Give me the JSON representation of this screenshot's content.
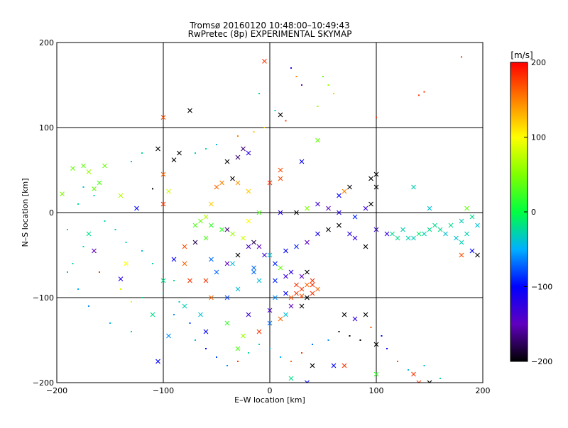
{
  "chart_data": {
    "type": "scatter",
    "title": "Tromsø 20160120 10:48:00–10:49:43",
    "subtitle": "RwPretec (8p) EXPERIMENTAL SKYMAP",
    "xlabel": "E–W location [km]",
    "ylabel": "N–S location [km]",
    "xlim": [
      -200,
      200
    ],
    "ylim": [
      -200,
      200
    ],
    "x_ticks": [
      "−200",
      "−100",
      "0",
      "100",
      "200"
    ],
    "y_ticks": [
      "−200",
      "−100",
      "0",
      "100",
      "200"
    ],
    "grid": true,
    "colorbar": {
      "label": "[m/s]",
      "range": [
        -200,
        200
      ],
      "ticks": [
        "200",
        "100",
        "0",
        "−100",
        "−200"
      ]
    },
    "series": [
      {
        "marker": "x",
        "points": [
          [
            -5,
            178,
            180
          ],
          [
            -100,
            112,
            170
          ],
          [
            -75,
            120,
            -200
          ],
          [
            10,
            115,
            -200
          ],
          [
            -105,
            75,
            -200
          ],
          [
            -85,
            70,
            -200
          ],
          [
            -90,
            62,
            -200
          ],
          [
            -30,
            65,
            -170
          ],
          [
            -20,
            70,
            -120
          ],
          [
            -25,
            75,
            -170
          ],
          [
            -40,
            60,
            -200
          ],
          [
            -100,
            45,
            160
          ],
          [
            -95,
            25,
            80
          ],
          [
            -175,
            55,
            40
          ],
          [
            -185,
            52,
            40
          ],
          [
            -170,
            48,
            60
          ],
          [
            -155,
            55,
            40
          ],
          [
            -160,
            35,
            30
          ],
          [
            -165,
            28,
            40
          ],
          [
            -195,
            22,
            50
          ],
          [
            -140,
            20,
            70
          ],
          [
            -125,
            5,
            -100
          ],
          [
            -100,
            10,
            180
          ],
          [
            -170,
            -25,
            -20
          ],
          [
            -165,
            -45,
            -150
          ],
          [
            -135,
            -60,
            100
          ],
          [
            -140,
            -78,
            -120
          ],
          [
            -110,
            -120,
            -20
          ],
          [
            -105,
            -175,
            -100
          ],
          [
            -80,
            -60,
            160
          ],
          [
            -75,
            -80,
            180
          ],
          [
            -60,
            -80,
            180
          ],
          [
            -55,
            -100,
            160
          ],
          [
            -40,
            -100,
            -80
          ],
          [
            -30,
            -90,
            -40
          ],
          [
            -20,
            -120,
            -130
          ],
          [
            -25,
            -145,
            60
          ],
          [
            -40,
            -130,
            20
          ],
          [
            -60,
            -140,
            -100
          ],
          [
            -65,
            -120,
            -40
          ],
          [
            -30,
            -160,
            30
          ],
          [
            -10,
            -140,
            180
          ],
          [
            0,
            -115,
            -140
          ],
          [
            5,
            -100,
            -60
          ],
          [
            15,
            -95,
            -100
          ],
          [
            20,
            -100,
            170
          ],
          [
            25,
            -95,
            180
          ],
          [
            30,
            -98,
            170
          ],
          [
            35,
            -100,
            -200
          ],
          [
            40,
            -95,
            180
          ],
          [
            25,
            -85,
            180
          ],
          [
            30,
            -90,
            180
          ],
          [
            35,
            -85,
            160
          ],
          [
            40,
            -85,
            180
          ],
          [
            45,
            -90,
            160
          ],
          [
            30,
            -110,
            -200
          ],
          [
            20,
            -110,
            -150
          ],
          [
            15,
            -120,
            -40
          ],
          [
            10,
            -125,
            160
          ],
          [
            0,
            -130,
            -70
          ],
          [
            40,
            -80,
            180
          ],
          [
            30,
            -75,
            -150
          ],
          [
            35,
            -70,
            -200
          ],
          [
            20,
            -70,
            -120
          ],
          [
            10,
            -65,
            40
          ],
          [
            0,
            -50,
            -40
          ],
          [
            -15,
            -65,
            -70
          ],
          [
            -30,
            -50,
            -200
          ],
          [
            -20,
            -40,
            -140
          ],
          [
            -60,
            -30,
            30
          ],
          [
            -70,
            -35,
            -180
          ],
          [
            -80,
            -40,
            170
          ],
          [
            -40,
            -20,
            -170
          ],
          [
            -20,
            -10,
            100
          ],
          [
            -10,
            0,
            30
          ],
          [
            10,
            0,
            -120
          ],
          [
            25,
            0,
            -200
          ],
          [
            35,
            5,
            50
          ],
          [
            45,
            10,
            -130
          ],
          [
            55,
            5,
            -150
          ],
          [
            65,
            0,
            -120
          ],
          [
            80,
            -5,
            -90
          ],
          [
            90,
            5,
            -130
          ],
          [
            95,
            10,
            -200
          ],
          [
            100,
            30,
            -200
          ],
          [
            100,
            45,
            -200
          ],
          [
            95,
            40,
            -200
          ],
          [
            75,
            30,
            -200
          ],
          [
            70,
            25,
            150
          ],
          [
            65,
            20,
            -100
          ],
          [
            30,
            60,
            -100
          ],
          [
            45,
            85,
            40
          ],
          [
            0,
            35,
            180
          ],
          [
            10,
            50,
            170
          ],
          [
            10,
            40,
            170
          ],
          [
            -35,
            40,
            -200
          ],
          [
            -45,
            35,
            150
          ],
          [
            -50,
            30,
            160
          ],
          [
            -30,
            35,
            140
          ],
          [
            -20,
            25,
            120
          ],
          [
            -55,
            10,
            120
          ],
          [
            -60,
            -5,
            70
          ],
          [
            -65,
            -10,
            40
          ],
          [
            -70,
            -15,
            30
          ],
          [
            -55,
            -15,
            20
          ],
          [
            -45,
            -20,
            20
          ],
          [
            -35,
            -25,
            60
          ],
          [
            -25,
            -30,
            80
          ],
          [
            -15,
            -35,
            -180
          ],
          [
            -10,
            -40,
            -150
          ],
          [
            -5,
            -50,
            -130
          ],
          [
            5,
            -60,
            -90
          ],
          [
            15,
            -45,
            -100
          ],
          [
            25,
            -40,
            -90
          ],
          [
            35,
            -35,
            -150
          ],
          [
            45,
            -25,
            -110
          ],
          [
            55,
            -20,
            -200
          ],
          [
            65,
            -15,
            -200
          ],
          [
            75,
            -25,
            -120
          ],
          [
            80,
            -30,
            -130
          ],
          [
            90,
            -40,
            -200
          ],
          [
            100,
            -20,
            -130
          ],
          [
            110,
            -25,
            -130
          ],
          [
            120,
            -30,
            -20
          ],
          [
            130,
            -30,
            -30
          ],
          [
            140,
            -25,
            -10
          ],
          [
            150,
            -20,
            -20
          ],
          [
            160,
            -20,
            -20
          ],
          [
            170,
            -15,
            -20
          ],
          [
            180,
            -10,
            -30
          ],
          [
            190,
            -5,
            -20
          ],
          [
            195,
            -15,
            -40
          ],
          [
            185,
            -25,
            -30
          ],
          [
            175,
            -30,
            -40
          ],
          [
            165,
            -25,
            -40
          ],
          [
            155,
            -15,
            -20
          ],
          [
            145,
            -25,
            -30
          ],
          [
            135,
            -30,
            -30
          ],
          [
            125,
            -20,
            -30
          ],
          [
            115,
            -25,
            -20
          ],
          [
            180,
            -35,
            -30
          ],
          [
            190,
            -45,
            -100
          ],
          [
            195,
            -50,
            -200
          ],
          [
            180,
            -50,
            170
          ],
          [
            135,
            30,
            -30
          ],
          [
            150,
            5,
            -40
          ],
          [
            185,
            5,
            40
          ],
          [
            70,
            -120,
            -200
          ],
          [
            90,
            -120,
            -200
          ],
          [
            80,
            -125,
            -130
          ],
          [
            100,
            -155,
            -200
          ],
          [
            100,
            -190,
            20
          ],
          [
            135,
            -190,
            180
          ],
          [
            140,
            -200,
            180
          ],
          [
            150,
            -200,
            -200
          ],
          [
            70,
            -180,
            180
          ],
          [
            60,
            -180,
            -100
          ],
          [
            40,
            -180,
            -200
          ],
          [
            35,
            -200,
            -100
          ],
          [
            20,
            -195,
            -20
          ],
          [
            -15,
            -70,
            -70
          ],
          [
            -50,
            -70,
            -70
          ],
          [
            -40,
            -60,
            -150
          ],
          [
            -55,
            -55,
            -70
          ],
          [
            -35,
            -60,
            -40
          ],
          [
            -10,
            -80,
            -40
          ],
          [
            5,
            -80,
            -90
          ],
          [
            15,
            -75,
            -130
          ],
          [
            -90,
            -55,
            -100
          ],
          [
            -80,
            -110,
            -30
          ],
          [
            -95,
            -145,
            -60
          ],
          [
            -100,
            -80,
            -20
          ]
        ]
      },
      {
        "marker": "dot",
        "points": [
          [
            180,
            183,
            180
          ],
          [
            140,
            138,
            180
          ],
          [
            145,
            142,
            180
          ],
          [
            100,
            112,
            180
          ],
          [
            20,
            170,
            -120
          ],
          [
            25,
            160,
            150
          ],
          [
            -10,
            140,
            -20
          ],
          [
            30,
            150,
            -150
          ],
          [
            50,
            160,
            40
          ],
          [
            55,
            150,
            60
          ],
          [
            60,
            140,
            120
          ],
          [
            45,
            125,
            60
          ],
          [
            5,
            120,
            -30
          ],
          [
            15,
            108,
            180
          ],
          [
            -5,
            100,
            120
          ],
          [
            -15,
            95,
            120
          ],
          [
            -30,
            90,
            150
          ],
          [
            -50,
            80,
            -40
          ],
          [
            -60,
            75,
            -20
          ],
          [
            -70,
            70,
            -30
          ],
          [
            -120,
            70,
            -20
          ],
          [
            -130,
            60,
            -40
          ],
          [
            -110,
            28,
            -200
          ],
          [
            -160,
            -70,
            180
          ],
          [
            -140,
            -90,
            80
          ],
          [
            -130,
            -105,
            90
          ],
          [
            -120,
            -100,
            -20
          ],
          [
            -100,
            -95,
            -40
          ],
          [
            -85,
            -105,
            -40
          ],
          [
            -90,
            -120,
            -60
          ],
          [
            -75,
            -130,
            -80
          ],
          [
            -70,
            -150,
            -40
          ],
          [
            -60,
            -160,
            -100
          ],
          [
            -50,
            -170,
            -80
          ],
          [
            -40,
            -180,
            -60
          ],
          [
            -30,
            -175,
            180
          ],
          [
            -20,
            -165,
            -20
          ],
          [
            -10,
            -155,
            -30
          ],
          [
            0,
            -160,
            -40
          ],
          [
            10,
            -170,
            -50
          ],
          [
            20,
            -175,
            160
          ],
          [
            30,
            -165,
            180
          ],
          [
            40,
            -155,
            -70
          ],
          [
            55,
            -150,
            -60
          ],
          [
            65,
            -140,
            -200
          ],
          [
            75,
            -145,
            -200
          ],
          [
            85,
            -150,
            -200
          ],
          [
            95,
            -135,
            170
          ],
          [
            105,
            -145,
            -100
          ],
          [
            110,
            -160,
            -100
          ],
          [
            120,
            -175,
            170
          ],
          [
            130,
            -185,
            -40
          ],
          [
            145,
            -180,
            -40
          ],
          [
            160,
            -195,
            -20
          ],
          [
            -130,
            -140,
            -20
          ],
          [
            -150,
            -130,
            -40
          ],
          [
            -170,
            -110,
            -60
          ],
          [
            -180,
            -90,
            -50
          ],
          [
            -190,
            -70,
            -40
          ],
          [
            -185,
            -60,
            -30
          ],
          [
            -175,
            -40,
            -30
          ],
          [
            -190,
            -20,
            -20
          ],
          [
            -180,
            10,
            -20
          ],
          [
            -175,
            30,
            -40
          ],
          [
            -165,
            20,
            -30
          ],
          [
            -155,
            -10,
            -30
          ],
          [
            -145,
            -20,
            -30
          ],
          [
            -135,
            -35,
            -30
          ],
          [
            -120,
            -45,
            -40
          ],
          [
            -110,
            -60,
            -30
          ],
          [
            -100,
            -70,
            -30
          ],
          [
            -90,
            -80,
            -20
          ]
        ]
      }
    ]
  }
}
